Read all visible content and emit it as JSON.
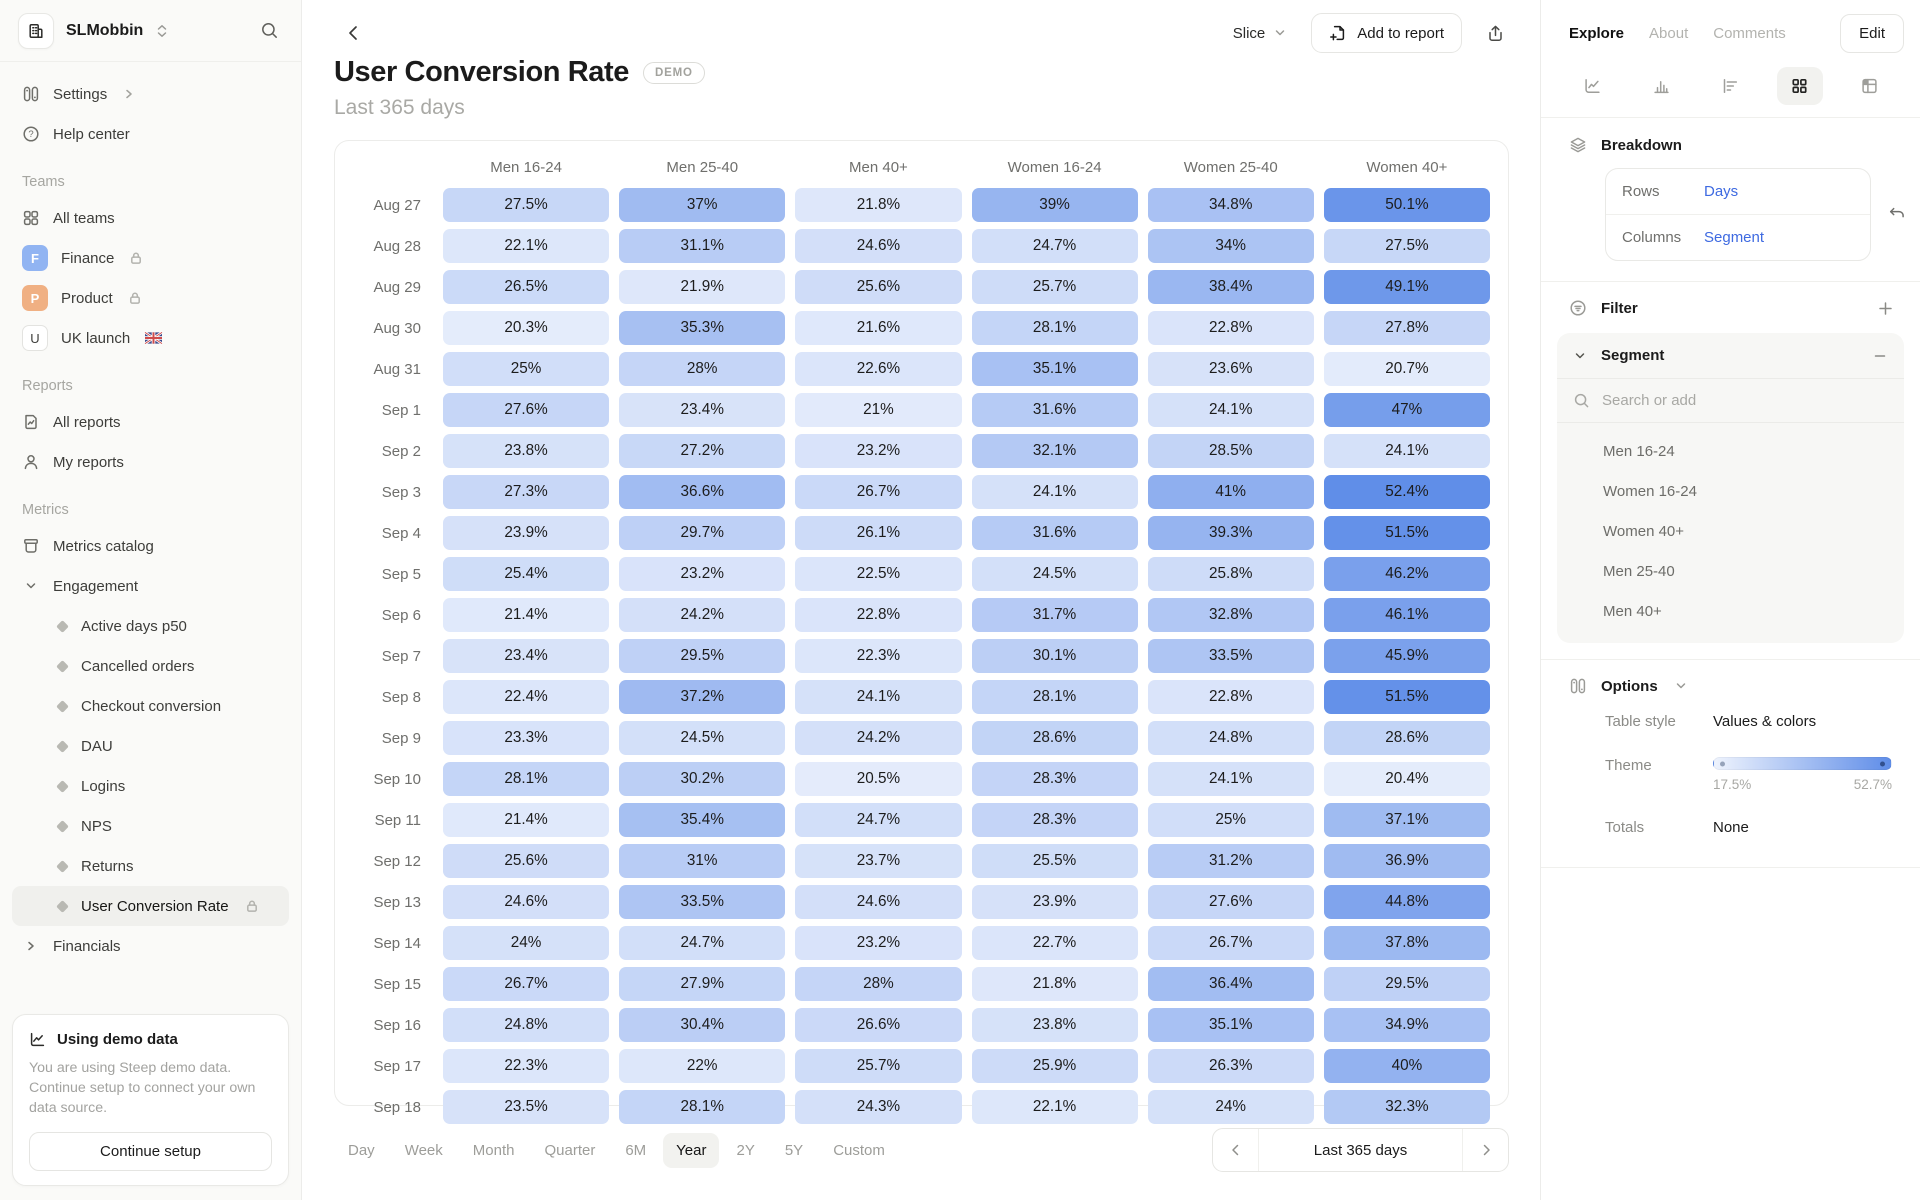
{
  "workspace": {
    "name": "SLMobbin"
  },
  "sidebar": {
    "settings_label": "Settings",
    "help_label": "Help center",
    "sections": {
      "teams": {
        "label": "Teams",
        "items": [
          {
            "label": "All teams"
          },
          {
            "label": "Finance",
            "avatar": "F",
            "avatar_color": "#91b4f2",
            "locked": true
          },
          {
            "label": "Product",
            "avatar": "P",
            "avatar_color": "#f0b083",
            "locked": true
          },
          {
            "label": "UK launch",
            "avatar": "U",
            "flag": "uk"
          }
        ]
      },
      "reports": {
        "label": "Reports",
        "items": [
          {
            "label": "All reports"
          },
          {
            "label": "My reports"
          }
        ]
      },
      "metrics": {
        "label": "Metrics",
        "catalog_label": "Metrics catalog",
        "groups": [
          {
            "label": "Engagement",
            "expanded": true,
            "children": [
              "Active days p50",
              "Cancelled orders",
              "Checkout conversion",
              "DAU",
              "Logins",
              "NPS",
              "Returns",
              "User Conversion Rate"
            ],
            "selected": "User Conversion Rate",
            "selected_locked": true
          },
          {
            "label": "Financials",
            "expanded": false
          }
        ]
      }
    },
    "demo_card": {
      "title": "Using demo data",
      "body": "You are using Steep demo data. Continue setup to connect your own data source.",
      "button": "Continue setup"
    }
  },
  "header": {
    "title": "User Conversion Rate",
    "badge": "DEMO",
    "subtitle": "Last 365 days",
    "slice_label": "Slice",
    "add_to_report_label": "Add to report"
  },
  "right_panel": {
    "tabs": [
      {
        "label": "Explore",
        "active": true
      },
      {
        "label": "About",
        "active": false
      },
      {
        "label": "Comments",
        "active": false
      }
    ],
    "edit_label": "Edit",
    "view_icons": [
      "line-chart",
      "bar-chart",
      "horizontal-bars",
      "grid",
      "pivot-table"
    ],
    "active_view": "grid",
    "breakdown": {
      "label": "Breakdown",
      "rows_label": "Rows",
      "rows_value": "Days",
      "columns_label": "Columns",
      "columns_value": "Segment"
    },
    "filter": {
      "label": "Filter"
    },
    "segment": {
      "label": "Segment",
      "search_placeholder": "Search or add",
      "items": [
        "Men 16-24",
        "Women 16-24",
        "Women 40+",
        "Men 25-40",
        "Men 40+"
      ]
    },
    "options": {
      "label": "Options",
      "table_style_label": "Table style",
      "table_style_value": "Values & colors",
      "theme_label": "Theme",
      "theme_min": "17.5%",
      "theme_max": "52.7%",
      "totals_label": "Totals",
      "totals_value": "None"
    },
    "accent_color": "#3e6ae1"
  },
  "bottom_bar": {
    "granularities": [
      "Day",
      "Week",
      "Month",
      "Quarter",
      "6M",
      "Year",
      "2Y",
      "5Y",
      "Custom"
    ],
    "active": "Year",
    "range_label": "Last 365 days"
  },
  "chart_data": {
    "type": "heatmap",
    "title": "User Conversion Rate",
    "subtitle": "Last 365 days",
    "unit": "%",
    "columns": [
      "Men 16-24",
      "Men 25-40",
      "Men 40+",
      "Women 16-24",
      "Women 25-40",
      "Women 40+"
    ],
    "rows": [
      "Aug 27",
      "Aug 28",
      "Aug 29",
      "Aug 30",
      "Aug 31",
      "Sep 1",
      "Sep 2",
      "Sep 3",
      "Sep 4",
      "Sep 5",
      "Sep 6",
      "Sep 7",
      "Sep 8",
      "Sep 9",
      "Sep 10",
      "Sep 11",
      "Sep 12",
      "Sep 13",
      "Sep 14",
      "Sep 15",
      "Sep 16",
      "Sep 17",
      "Sep 18"
    ],
    "values": [
      [
        27.5,
        37,
        21.8,
        39,
        34.8,
        50.1
      ],
      [
        22.1,
        31.1,
        24.6,
        24.7,
        34,
        27.5
      ],
      [
        26.5,
        21.9,
        25.6,
        25.7,
        38.4,
        49.1
      ],
      [
        20.3,
        35.3,
        21.6,
        28.1,
        22.8,
        27.8
      ],
      [
        25,
        28,
        22.6,
        35.1,
        23.6,
        20.7
      ],
      [
        27.6,
        23.4,
        21,
        31.6,
        24.1,
        47
      ],
      [
        23.8,
        27.2,
        23.2,
        32.1,
        28.5,
        24.1
      ],
      [
        27.3,
        36.6,
        26.7,
        24.1,
        41,
        52.4
      ],
      [
        23.9,
        29.7,
        26.1,
        31.6,
        39.3,
        51.5
      ],
      [
        25.4,
        23.2,
        22.5,
        24.5,
        25.8,
        46.2
      ],
      [
        21.4,
        24.2,
        22.8,
        31.7,
        32.8,
        46.1
      ],
      [
        23.4,
        29.5,
        22.3,
        30.1,
        33.5,
        45.9
      ],
      [
        22.4,
        37.2,
        24.1,
        28.1,
        22.8,
        51.5
      ],
      [
        23.3,
        24.5,
        24.2,
        28.6,
        24.8,
        28.6
      ],
      [
        28.1,
        30.2,
        20.5,
        28.3,
        24.1,
        20.4
      ],
      [
        21.4,
        35.4,
        24.7,
        28.3,
        25,
        37.1
      ],
      [
        25.6,
        31,
        23.7,
        25.5,
        31.2,
        36.9
      ],
      [
        24.6,
        33.5,
        24.6,
        23.9,
        27.6,
        44.8
      ],
      [
        24,
        24.7,
        23.2,
        22.7,
        26.7,
        37.8
      ],
      [
        26.7,
        27.9,
        28,
        21.8,
        36.4,
        29.5
      ],
      [
        24.8,
        30.4,
        26.6,
        23.8,
        35.1,
        34.9
      ],
      [
        22.3,
        22,
        25.7,
        25.9,
        26.3,
        40
      ],
      [
        23.5,
        28.1,
        24.3,
        22.1,
        24,
        32.3
      ]
    ],
    "color_scale": {
      "min": 17.5,
      "max": 52.7,
      "min_color": "#f0f4fd",
      "max_color": "#5f8de8"
    }
  }
}
